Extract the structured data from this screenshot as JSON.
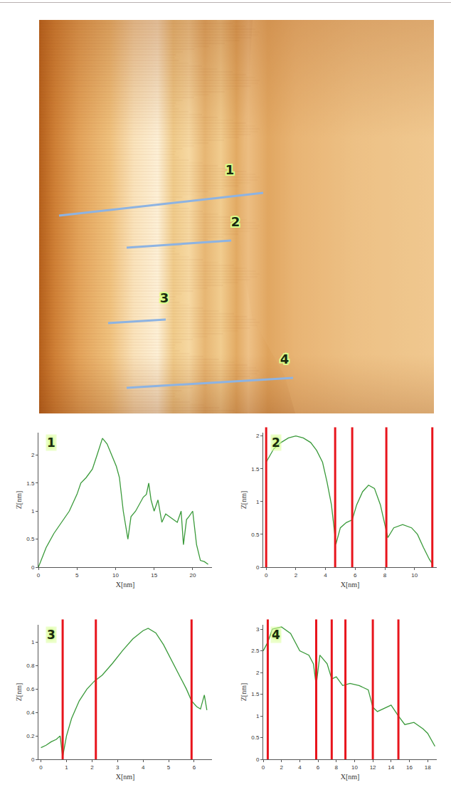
{
  "image": {
    "lines": [
      {
        "label": "1"
      },
      {
        "label": "2"
      },
      {
        "label": "3"
      },
      {
        "label": "4"
      }
    ]
  },
  "chart_data": [
    {
      "type": "line",
      "label": "1",
      "xlabel": "X[nm]",
      "ylabel": "Z[nm]",
      "color": "#3a9a3a",
      "x": [
        0,
        1,
        2,
        3,
        4,
        5,
        5.5,
        6.2,
        7,
        7.6,
        8.3,
        8.9,
        9.5,
        10.1,
        10.5,
        11,
        11.6,
        12,
        12.6,
        13,
        13.6,
        14,
        14.3,
        14.6,
        15,
        15.5,
        16,
        16.5,
        17,
        17.5,
        18,
        18.5,
        18.8,
        19.2,
        19.5,
        20,
        20.5,
        21,
        21.5,
        22
      ],
      "values": [
        0,
        0.35,
        0.6,
        0.8,
        1.0,
        1.3,
        1.5,
        1.6,
        1.75,
        2.0,
        2.3,
        2.2,
        2.0,
        1.8,
        1.6,
        1.0,
        0.5,
        0.9,
        1.0,
        1.1,
        1.25,
        1.3,
        1.5,
        1.2,
        1.0,
        1.2,
        0.8,
        0.95,
        0.9,
        0.85,
        0.8,
        1.0,
        0.4,
        0.85,
        0.9,
        1.0,
        0.4,
        0.12,
        0.1,
        0.05
      ],
      "xlim": [
        0,
        22.5
      ],
      "xticks": [
        0,
        5,
        10,
        15,
        20
      ],
      "ylim": [
        0,
        2.4
      ],
      "yticks": [
        0,
        0.5,
        1,
        1.5,
        2
      ],
      "grid": false
    },
    {
      "type": "line",
      "label": "2",
      "xlabel": "X[nm]",
      "ylabel": "Z[nm]",
      "color": "#3a9a3a",
      "x": [
        0,
        0.5,
        1,
        1.5,
        2,
        2.5,
        3,
        3.4,
        3.8,
        4.1,
        4.4,
        4.7,
        5.0,
        5.4,
        5.8,
        6.1,
        6.5,
        6.9,
        7.3,
        7.7,
        8.0,
        8.2,
        8.6,
        9.2,
        9.8,
        10.2,
        10.6,
        11.0,
        11.2
      ],
      "values": [
        1.6,
        1.8,
        1.9,
        1.97,
        2.0,
        1.97,
        1.9,
        1.78,
        1.6,
        1.3,
        0.95,
        0.35,
        0.6,
        0.68,
        0.72,
        0.95,
        1.15,
        1.25,
        1.2,
        0.95,
        0.65,
        0.45,
        0.6,
        0.65,
        0.6,
        0.5,
        0.3,
        0.12,
        0.05
      ],
      "xlim": [
        -0.2,
        11.5
      ],
      "xticks": [
        0,
        2,
        4,
        6,
        8,
        10
      ],
      "ylim": [
        0,
        2.05
      ],
      "yticks": [
        0,
        0.5,
        1,
        1.5,
        2
      ],
      "vlines": {
        "x": [
          0,
          4.65,
          5.8,
          8.1,
          11.2
        ],
        "color": "#e8141c"
      },
      "grid": false
    },
    {
      "type": "line",
      "label": "3",
      "xlabel": "X[nm]",
      "ylabel": "Z[nm]",
      "color": "#3a9a3a",
      "x": [
        0,
        0.2,
        0.4,
        0.6,
        0.75,
        0.85,
        1.0,
        1.2,
        1.5,
        1.8,
        2.1,
        2.4,
        2.8,
        3.2,
        3.6,
        4.0,
        4.2,
        4.5,
        4.8,
        5.1,
        5.4,
        5.7,
        5.9,
        6.1,
        6.25,
        6.4,
        6.5
      ],
      "values": [
        0.1,
        0.12,
        0.15,
        0.17,
        0.2,
        0.02,
        0.2,
        0.35,
        0.5,
        0.6,
        0.67,
        0.72,
        0.82,
        0.93,
        1.03,
        1.1,
        1.12,
        1.08,
        0.98,
        0.85,
        0.72,
        0.6,
        0.5,
        0.45,
        0.43,
        0.55,
        0.42
      ],
      "xlim": [
        -0.1,
        6.7
      ],
      "xticks": [
        0,
        1,
        2,
        3,
        4,
        5,
        6
      ],
      "ylim": [
        0,
        1.15
      ],
      "yticks": [
        0,
        0.2,
        0.4,
        0.6,
        0.8,
        1
      ],
      "vlines": {
        "x": [
          0.85,
          2.15,
          5.9
        ],
        "color": "#e8141c"
      },
      "grid": false
    },
    {
      "type": "line",
      "label": "4",
      "xlabel": "X[nm]",
      "ylabel": "Z[nm]",
      "color": "#3a9a3a",
      "x": [
        0,
        0.5,
        1,
        2,
        3,
        4,
        5,
        5.5,
        5.8,
        6.2,
        7,
        7.5,
        8,
        8.7,
        9.5,
        10.5,
        11.5,
        12,
        12.5,
        13.5,
        14,
        14.8,
        15.5,
        16.5,
        17.5,
        18,
        18.8
      ],
      "values": [
        2.5,
        2.7,
        3.0,
        3.05,
        2.9,
        2.5,
        2.4,
        2.2,
        1.7,
        2.4,
        2.2,
        1.85,
        1.9,
        1.7,
        1.75,
        1.7,
        1.6,
        1.2,
        1.1,
        1.2,
        1.25,
        1.0,
        0.8,
        0.85,
        0.7,
        0.6,
        0.3
      ],
      "xlim": [
        0,
        19
      ],
      "xticks": [
        0,
        2,
        4,
        6,
        8,
        10,
        12,
        14,
        16,
        18
      ],
      "ylim": [
        0,
        3.1
      ],
      "yticks": [
        0,
        0.5,
        1,
        1.5,
        2,
        2.5,
        3
      ],
      "vlines": {
        "x": [
          0.5,
          5.8,
          7.5,
          9.0,
          12,
          14.8
        ],
        "color": "#e8141c"
      },
      "grid": false
    }
  ]
}
